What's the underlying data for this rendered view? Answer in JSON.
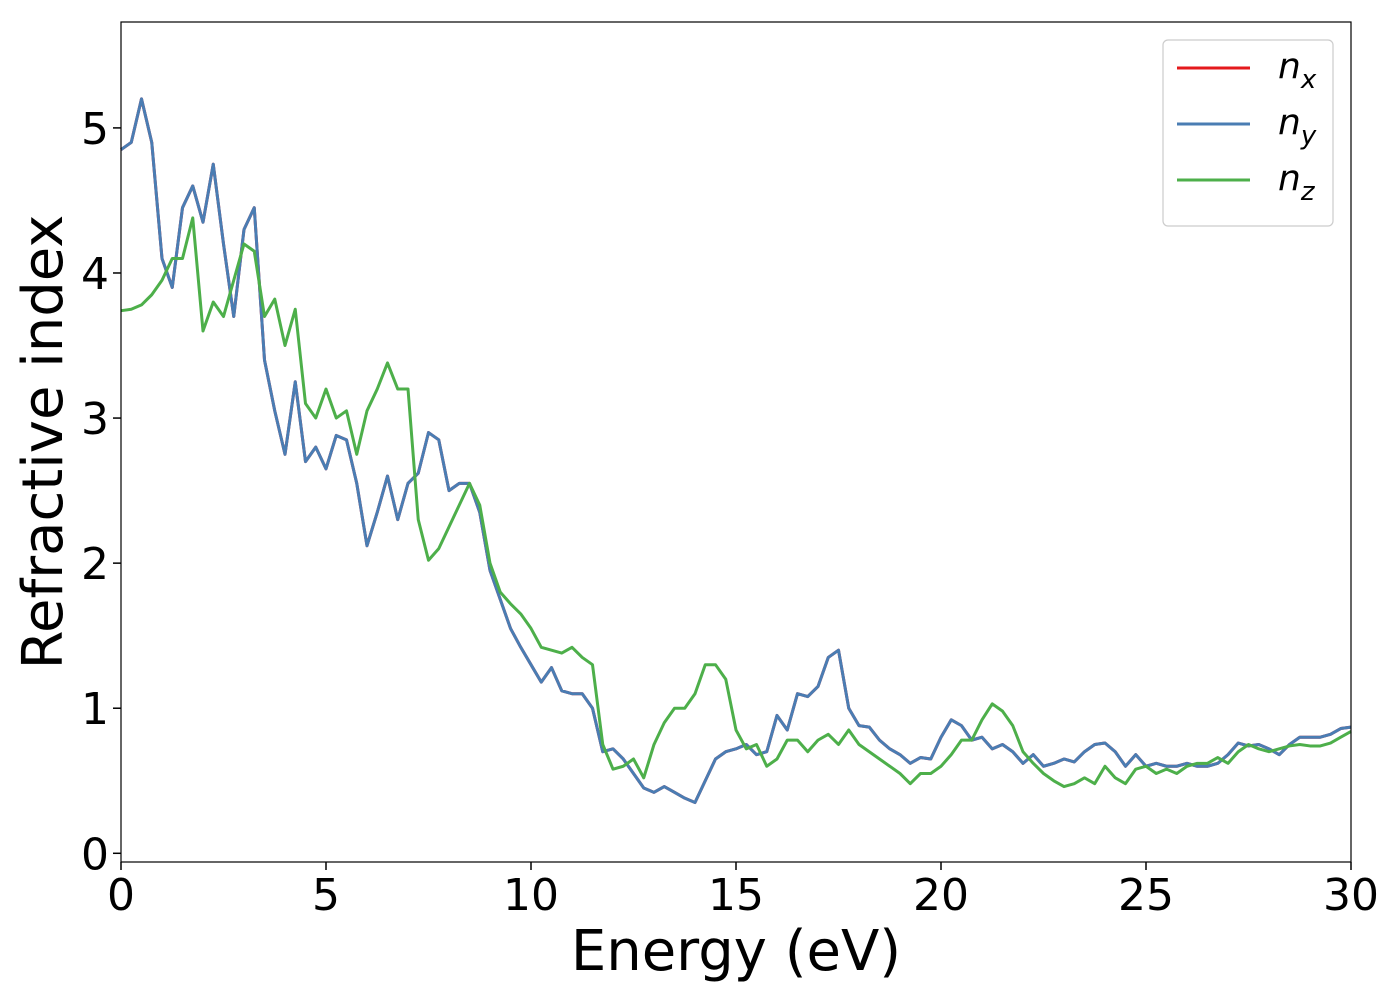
{
  "chart_data": {
    "type": "line",
    "xlabel": "Energy (eV)",
    "ylabel": "Refractive index",
    "xlim": [
      0,
      30
    ],
    "ylim": [
      -0.06,
      5.73
    ],
    "xticks": [
      0,
      5,
      10,
      15,
      20,
      25,
      30
    ],
    "yticks": [
      0,
      1,
      2,
      3,
      4,
      5
    ],
    "legend": "upper right",
    "x": [
      0,
      0.25,
      0.5,
      0.75,
      1,
      1.25,
      1.5,
      1.75,
      2,
      2.25,
      2.5,
      2.75,
      3,
      3.25,
      3.5,
      3.75,
      4,
      4.25,
      4.5,
      4.75,
      5,
      5.25,
      5.5,
      5.75,
      6,
      6.25,
      6.5,
      6.75,
      7,
      7.25,
      7.5,
      7.75,
      8,
      8.25,
      8.5,
      8.75,
      9,
      9.25,
      9.5,
      9.75,
      10,
      10.25,
      10.5,
      10.75,
      11,
      11.25,
      11.5,
      11.75,
      12,
      12.25,
      12.5,
      12.75,
      13,
      13.25,
      13.5,
      13.75,
      14,
      14.25,
      14.5,
      14.75,
      15,
      15.25,
      15.5,
      15.75,
      16,
      16.25,
      16.5,
      16.75,
      17,
      17.25,
      17.5,
      17.75,
      18,
      18.25,
      18.5,
      18.75,
      19,
      19.25,
      19.5,
      19.75,
      20,
      20.25,
      20.5,
      20.75,
      21,
      21.25,
      21.5,
      21.75,
      22,
      22.25,
      22.5,
      22.75,
      23,
      23.25,
      23.5,
      23.75,
      24,
      24.25,
      24.5,
      24.75,
      25,
      25.25,
      25.5,
      25.75,
      26,
      26.25,
      26.5,
      26.75,
      27,
      27.25,
      27.5,
      27.75,
      28,
      28.25,
      28.5,
      28.75,
      29,
      29.25,
      29.5,
      29.75,
      30
    ],
    "series": [
      {
        "name": "nx",
        "color": "#e41a1c",
        "values": [
          4.85,
          4.9,
          5.2,
          4.9,
          4.1,
          3.9,
          4.45,
          4.6,
          4.35,
          4.75,
          4.2,
          3.7,
          4.3,
          4.45,
          3.4,
          3.05,
          2.75,
          3.25,
          2.7,
          2.8,
          2.65,
          2.88,
          2.85,
          2.55,
          2.12,
          2.35,
          2.6,
          2.3,
          2.55,
          2.62,
          2.9,
          2.85,
          2.5,
          2.55,
          2.55,
          2.35,
          1.95,
          1.75,
          1.55,
          1.42,
          1.3,
          1.18,
          1.28,
          1.12,
          1.1,
          1.1,
          1.0,
          0.7,
          0.72,
          0.65,
          0.55,
          0.45,
          0.42,
          0.46,
          0.42,
          0.38,
          0.35,
          0.5,
          0.65,
          0.7,
          0.72,
          0.75,
          0.68,
          0.7,
          0.95,
          0.85,
          1.1,
          1.08,
          1.15,
          1.35,
          1.4,
          1.0,
          0.88,
          0.87,
          0.78,
          0.72,
          0.68,
          0.62,
          0.66,
          0.65,
          0.8,
          0.92,
          0.88,
          0.78,
          0.8,
          0.72,
          0.75,
          0.7,
          0.62,
          0.68,
          0.6,
          0.62,
          0.65,
          0.63,
          0.7,
          0.75,
          0.76,
          0.7,
          0.6,
          0.68,
          0.6,
          0.62,
          0.6,
          0.6,
          0.62,
          0.6,
          0.6,
          0.62,
          0.68,
          0.76,
          0.74,
          0.75,
          0.72,
          0.68,
          0.75,
          0.8,
          0.8,
          0.8,
          0.82,
          0.86,
          0.87
        ]
      },
      {
        "name": "ny",
        "color": "#4a7db3",
        "values": [
          4.85,
          4.9,
          5.2,
          4.9,
          4.1,
          3.9,
          4.45,
          4.6,
          4.35,
          4.75,
          4.2,
          3.7,
          4.3,
          4.45,
          3.4,
          3.05,
          2.75,
          3.25,
          2.7,
          2.8,
          2.65,
          2.88,
          2.85,
          2.55,
          2.12,
          2.35,
          2.6,
          2.3,
          2.55,
          2.62,
          2.9,
          2.85,
          2.5,
          2.55,
          2.55,
          2.35,
          1.95,
          1.75,
          1.55,
          1.42,
          1.3,
          1.18,
          1.28,
          1.12,
          1.1,
          1.1,
          1.0,
          0.7,
          0.72,
          0.65,
          0.55,
          0.45,
          0.42,
          0.46,
          0.42,
          0.38,
          0.35,
          0.5,
          0.65,
          0.7,
          0.72,
          0.75,
          0.68,
          0.7,
          0.95,
          0.85,
          1.1,
          1.08,
          1.15,
          1.35,
          1.4,
          1.0,
          0.88,
          0.87,
          0.78,
          0.72,
          0.68,
          0.62,
          0.66,
          0.65,
          0.8,
          0.92,
          0.88,
          0.78,
          0.8,
          0.72,
          0.75,
          0.7,
          0.62,
          0.68,
          0.6,
          0.62,
          0.65,
          0.63,
          0.7,
          0.75,
          0.76,
          0.7,
          0.6,
          0.68,
          0.6,
          0.62,
          0.6,
          0.6,
          0.62,
          0.6,
          0.6,
          0.62,
          0.68,
          0.76,
          0.74,
          0.75,
          0.72,
          0.68,
          0.75,
          0.8,
          0.8,
          0.8,
          0.82,
          0.86,
          0.87
        ]
      },
      {
        "name": "nz",
        "color": "#4daf4a",
        "values": [
          3.74,
          3.75,
          3.78,
          3.85,
          3.95,
          4.1,
          4.1,
          4.38,
          3.6,
          3.8,
          3.7,
          3.95,
          4.2,
          4.15,
          3.7,
          3.82,
          3.5,
          3.75,
          3.1,
          3.0,
          3.2,
          3.0,
          3.05,
          2.75,
          3.05,
          3.2,
          3.38,
          3.2,
          3.2,
          2.3,
          2.02,
          2.1,
          2.25,
          2.4,
          2.55,
          2.4,
          2.0,
          1.8,
          1.72,
          1.65,
          1.55,
          1.42,
          1.4,
          1.38,
          1.42,
          1.35,
          1.3,
          0.75,
          0.58,
          0.6,
          0.65,
          0.52,
          0.75,
          0.9,
          1.0,
          1.0,
          1.1,
          1.3,
          1.3,
          1.2,
          0.85,
          0.72,
          0.75,
          0.6,
          0.65,
          0.78,
          0.78,
          0.7,
          0.78,
          0.82,
          0.75,
          0.85,
          0.75,
          0.7,
          0.65,
          0.6,
          0.55,
          0.48,
          0.55,
          0.55,
          0.6,
          0.68,
          0.78,
          0.78,
          0.92,
          1.03,
          0.98,
          0.88,
          0.7,
          0.62,
          0.55,
          0.5,
          0.46,
          0.48,
          0.52,
          0.48,
          0.6,
          0.52,
          0.48,
          0.58,
          0.6,
          0.55,
          0.58,
          0.55,
          0.6,
          0.62,
          0.62,
          0.66,
          0.62,
          0.7,
          0.75,
          0.72,
          0.7,
          0.72,
          0.74,
          0.75,
          0.74,
          0.74,
          0.76,
          0.8,
          0.84
        ]
      }
    ]
  }
}
